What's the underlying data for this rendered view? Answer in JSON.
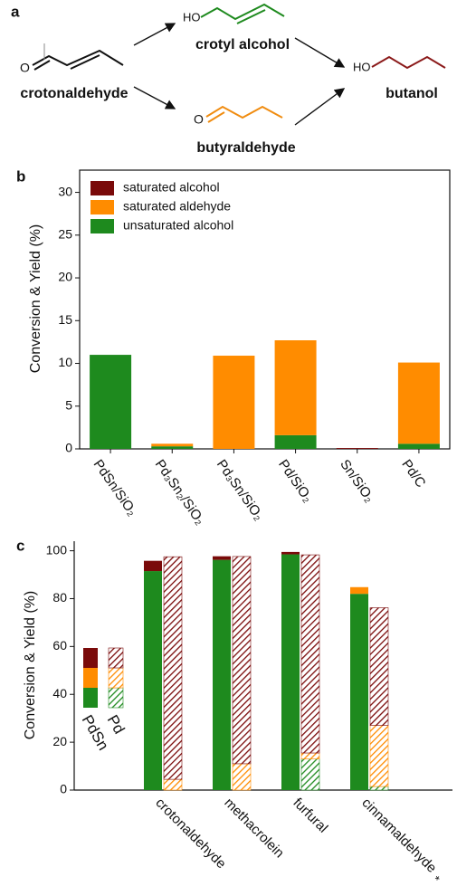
{
  "scheme": {
    "label": "a",
    "crotonaldehyde": {
      "atom": "O",
      "name": "crotonaldehyde"
    },
    "crotyl_alcohol": {
      "atom": "HO",
      "name": "crotyl alcohol",
      "color": "#1e8a1e"
    },
    "butyraldehyde": {
      "atom": "O",
      "name": "butyraldehyde",
      "color": "#f08c10"
    },
    "butanol": {
      "atom": "HO",
      "name": "butanol",
      "color": "#8b1a1a"
    }
  },
  "chart_data": [
    {
      "type": "stacked_bar",
      "panel": "b",
      "ylabel": "Conversion & Yield (%)",
      "categories": [
        "PdSn/SiO₂",
        "Pd₃Sn₂/SiO₂",
        "Pd₃Sn/SiO₂",
        "Pd/SiO₂",
        "Sn/SiO₂",
        "Pd/C"
      ],
      "series": [
        {
          "name": "unsaturated alcohol",
          "color": "#1e8a1e",
          "values": [
            11.0,
            0.3,
            0,
            1.6,
            0,
            0.6
          ]
        },
        {
          "name": "saturated aldehyde",
          "color": "#ff8c00",
          "values": [
            0,
            0.3,
            10.9,
            11.1,
            0,
            9.5
          ]
        },
        {
          "name": "saturated alcohol",
          "color": "#7a0a0a",
          "values": [
            0,
            0,
            0,
            0,
            0.1,
            0
          ]
        }
      ],
      "ylim": [
        0,
        32.6
      ],
      "yticks": [
        0,
        5,
        10,
        15,
        20,
        25,
        30
      ],
      "legend": "top-left"
    },
    {
      "type": "grouped_stacked_bar",
      "panel": "c",
      "ylabel": "Conversion & Yield (%)",
      "categories": [
        "crotonaldehyde",
        "methacrolein",
        "furfural",
        "cinnamaldehyde"
      ],
      "footnote_mark": "*",
      "groups": [
        {
          "name": "PdSn",
          "hatched": false,
          "series": [
            {
              "color": "#1e8a1e",
              "values": [
                91.5,
                96.2,
                98.5,
                82
              ]
            },
            {
              "color": "#ff8c00",
              "values": [
                0,
                0,
                0,
                2.8
              ]
            },
            {
              "color": "#7a0a0a",
              "values": [
                4.3,
                1.5,
                1,
                0
              ]
            }
          ]
        },
        {
          "name": "Pd",
          "hatched": true,
          "series": [
            {
              "color": "#1e8a1e",
              "values": [
                0,
                0,
                13,
                1.5
              ]
            },
            {
              "color": "#ff8c00",
              "values": [
                4.5,
                11,
                2.5,
                25.5
              ]
            },
            {
              "color": "#7a0a0a",
              "values": [
                93,
                86.6,
                82.8,
                49.2
              ]
            }
          ]
        }
      ],
      "ylim": [
        0,
        104
      ],
      "yticks": [
        0,
        20,
        40,
        60,
        80,
        100
      ]
    }
  ]
}
